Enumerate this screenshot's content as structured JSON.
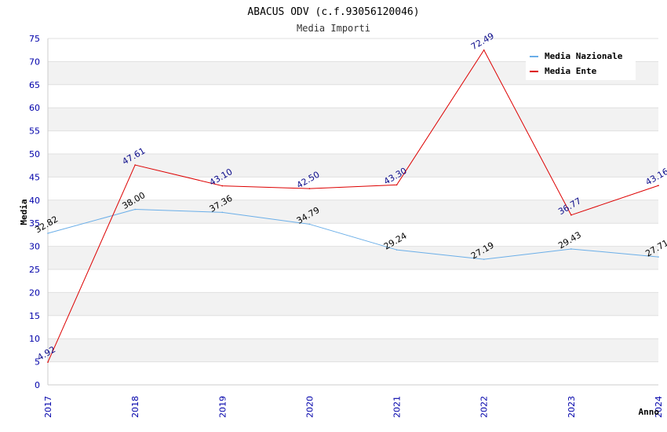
{
  "chart_data": {
    "type": "line",
    "title": "ABACUS ODV (c.f.93056120046)",
    "subtitle": "Media Importi",
    "xlabel": "Anno",
    "ylabel": "Media",
    "categories": [
      "2017",
      "2018",
      "2019",
      "2020",
      "2021",
      "2022",
      "2023",
      "2024"
    ],
    "ylim": [
      0,
      75
    ],
    "yticks": [
      "0",
      "5",
      "10",
      "15",
      "20",
      "25",
      "30",
      "35",
      "40",
      "45",
      "50",
      "55",
      "60",
      "65",
      "70",
      "75"
    ],
    "grid": true,
    "legend_position": "top-right",
    "series": [
      {
        "name": "Media Nazionale",
        "color": "#6aaee8",
        "values": [
          32.82,
          38.0,
          37.36,
          34.79,
          29.24,
          27.19,
          29.43,
          27.71
        ],
        "labels": [
          "32.82",
          "38.00",
          "37.36",
          "34.79",
          "29.24",
          "27.19",
          "29.43",
          "27.71"
        ]
      },
      {
        "name": "Media Ente",
        "color": "#dd0000",
        "values": [
          4.92,
          47.61,
          43.1,
          42.5,
          43.3,
          72.49,
          36.77,
          43.16
        ],
        "labels": [
          "4.92",
          "47.61",
          "43.10",
          "42.50",
          "43.30",
          "72.49",
          "36.77",
          "43.16"
        ]
      }
    ]
  }
}
